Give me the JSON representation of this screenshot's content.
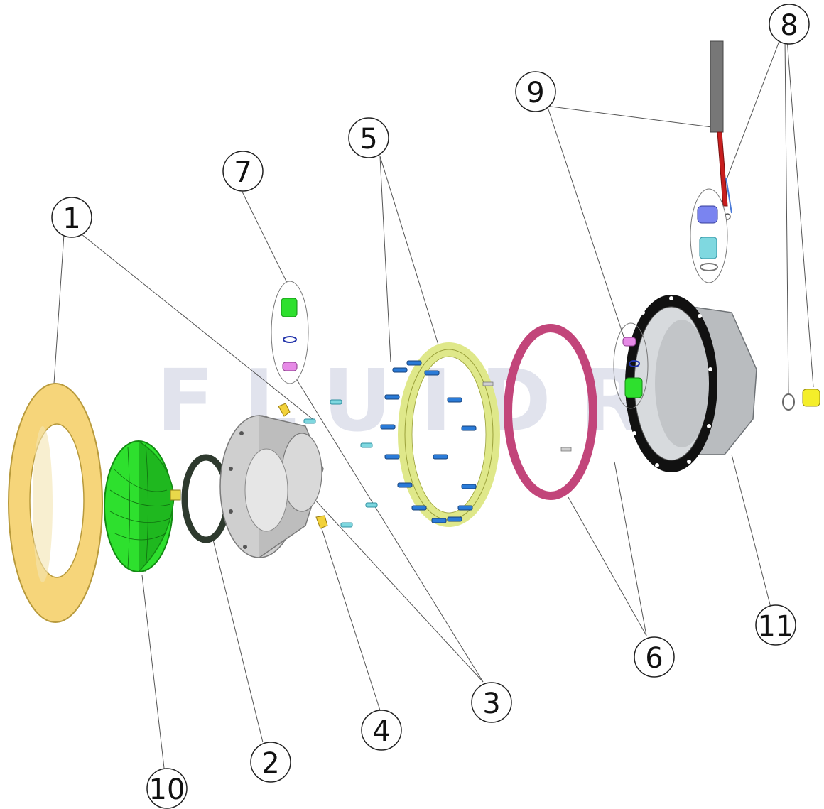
{
  "watermark": "FLUIDRA",
  "callouts": {
    "c1": "1",
    "c2": "2",
    "c3": "3",
    "c4": "4",
    "c5": "5",
    "c6": "6",
    "c7": "7",
    "c8": "8",
    "c9": "9",
    "c10": "10",
    "c11": "11"
  },
  "colors": {
    "trim_ring": "#f6d57a",
    "lamp": "#2ee02e",
    "oring": "#2e3a2e",
    "niche": "#c6c6c6",
    "screws": "#2a7bd8",
    "screws_light": "#7fd8e0",
    "clamp_ring": "#dfe88a",
    "gasket": "#c2457a",
    "housing": "#b9bcbf",
    "housing_flange": "#111111",
    "clip": "#f2d13a",
    "cable": "#c81e1e",
    "cable_sleeve": "#777777",
    "plug_yellow": "#f4ee2a"
  }
}
